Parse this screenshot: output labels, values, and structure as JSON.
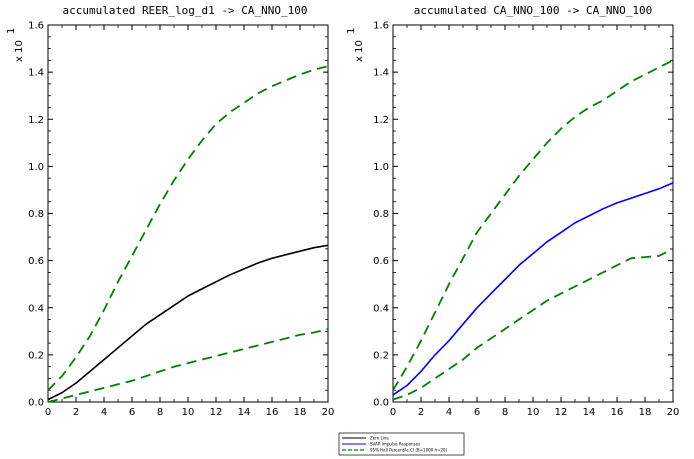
{
  "chart_data": [
    {
      "type": "line",
      "title": "accumulated REER_log_d1 -> CA_NNO_100",
      "ylabel": "x 10",
      "y_scale_exponent": "1",
      "xlim": [
        0,
        20
      ],
      "ylim": [
        0,
        1.6
      ],
      "x_ticks": [
        "0",
        "2",
        "4",
        "6",
        "8",
        "10",
        "12",
        "14",
        "16",
        "18",
        "20"
      ],
      "y_ticks": [
        "0.0",
        "0.2",
        "0.4",
        "0.6",
        "0.8",
        "1.0",
        "1.2",
        "1.4",
        "1.6"
      ],
      "x": [
        0,
        1,
        2,
        3,
        4,
        5,
        6,
        7,
        8,
        9,
        10,
        11,
        12,
        13,
        14,
        15,
        16,
        17,
        18,
        19,
        20
      ],
      "series": [
        {
          "name": "SVAR Impulse Responses",
          "color": "#000000",
          "dash": "solid",
          "values": [
            0.01,
            0.04,
            0.08,
            0.13,
            0.18,
            0.23,
            0.28,
            0.33,
            0.37,
            0.41,
            0.45,
            0.48,
            0.51,
            0.54,
            0.565,
            0.59,
            0.61,
            0.625,
            0.64,
            0.655,
            0.665
          ]
        },
        {
          "name": "95% Hall Percentile CI (B=1000 h=20)",
          "color": "#008000",
          "dash": "dashed",
          "values": [
            0.05,
            0.11,
            0.19,
            0.28,
            0.39,
            0.51,
            0.62,
            0.73,
            0.84,
            0.94,
            1.03,
            1.11,
            1.18,
            1.23,
            1.27,
            1.31,
            1.34,
            1.365,
            1.39,
            1.41,
            1.425
          ]
        },
        {
          "name": "95% Hall Percentile CI (B=1000 h=20)",
          "color": "#008000",
          "dash": "dashed",
          "values": [
            0.0,
            0.015,
            0.03,
            0.045,
            0.06,
            0.075,
            0.09,
            0.11,
            0.13,
            0.15,
            0.165,
            0.18,
            0.195,
            0.21,
            0.225,
            0.24,
            0.255,
            0.27,
            0.285,
            0.295,
            0.31
          ]
        }
      ]
    },
    {
      "type": "line",
      "title": "accumulated CA_NNO_100 -> CA_NNO_100",
      "ylabel": "x 10",
      "y_scale_exponent": "1",
      "xlim": [
        0,
        20
      ],
      "ylim": [
        0,
        1.6
      ],
      "x_ticks": [
        "0",
        "2",
        "4",
        "6",
        "8",
        "10",
        "12",
        "14",
        "16",
        "18",
        "20"
      ],
      "y_ticks": [
        "0.0",
        "0.2",
        "0.4",
        "0.6",
        "0.8",
        "1.0",
        "1.2",
        "1.4",
        "1.6"
      ],
      "x": [
        0,
        1,
        2,
        3,
        4,
        5,
        6,
        7,
        8,
        9,
        10,
        11,
        12,
        13,
        14,
        15,
        16,
        17,
        18,
        19,
        20
      ],
      "series": [
        {
          "name": "SVAR Impulse Responses",
          "color": "#0000ff",
          "dash": "solid",
          "values": [
            0.03,
            0.07,
            0.13,
            0.2,
            0.26,
            0.33,
            0.4,
            0.46,
            0.52,
            0.58,
            0.63,
            0.68,
            0.72,
            0.76,
            0.79,
            0.82,
            0.845,
            0.865,
            0.885,
            0.905,
            0.93
          ]
        },
        {
          "name": "95% Hall Percentile CI (B=1000 h=20)",
          "color": "#008000",
          "dash": "dashed",
          "values": [
            0.05,
            0.15,
            0.26,
            0.38,
            0.5,
            0.61,
            0.72,
            0.8,
            0.88,
            0.96,
            1.03,
            1.1,
            1.16,
            1.21,
            1.25,
            1.28,
            1.32,
            1.36,
            1.39,
            1.42,
            1.45
          ]
        },
        {
          "name": "95% Hall Percentile CI (B=1000 h=20)",
          "color": "#008000",
          "dash": "dashed",
          "values": [
            0.01,
            0.03,
            0.06,
            0.1,
            0.14,
            0.18,
            0.23,
            0.27,
            0.31,
            0.35,
            0.39,
            0.43,
            0.46,
            0.49,
            0.52,
            0.55,
            0.58,
            0.61,
            0.615,
            0.62,
            0.65
          ]
        }
      ]
    }
  ],
  "legend": {
    "placement": "bottom-center",
    "items": [
      {
        "label": "Zero Line",
        "color": "#000000",
        "dash": "solid"
      },
      {
        "label": "SVAR Impulse Responses",
        "color": "#0000ff",
        "dash": "solid"
      },
      {
        "label": "95% Hall Percentile CI (B=1000 h=20)",
        "color": "#008000",
        "dash": "dashed"
      }
    ]
  }
}
